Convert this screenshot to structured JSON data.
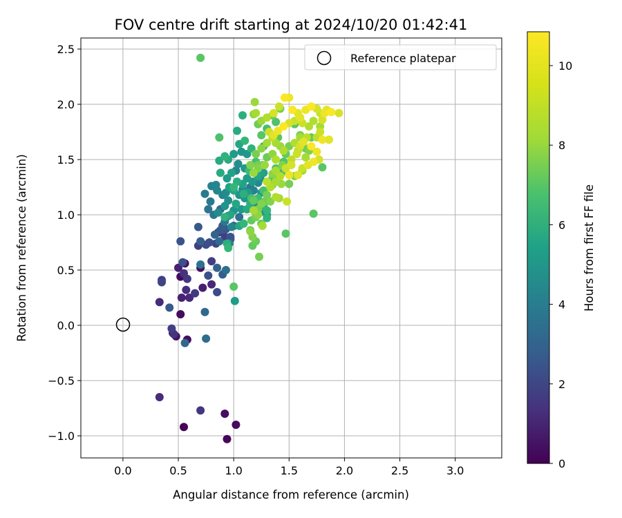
{
  "chart_data": {
    "type": "scatter",
    "title": "FOV centre drift starting at 2024/10/20 01:42:41",
    "xlabel": "Angular distance from reference (arcmin)",
    "ylabel": "Rotation from reference (arcmin)",
    "xlim": [
      -0.38,
      3.42
    ],
    "ylim": [
      -1.2,
      2.6
    ],
    "xticks": [
      0.0,
      0.5,
      1.0,
      1.5,
      2.0,
      2.5,
      3.0
    ],
    "xtick_labels": [
      "0.0",
      "0.5",
      "1.0",
      "1.5",
      "2.0",
      "2.5",
      "3.0"
    ],
    "yticks": [
      -1.0,
      -0.5,
      0.0,
      0.5,
      1.0,
      1.5,
      2.0,
      2.5
    ],
    "ytick_labels": [
      "−1.0",
      "−0.5",
      "0.0",
      "0.5",
      "1.0",
      "1.5",
      "2.0",
      "2.5"
    ],
    "grid": true,
    "colormap": "viridis",
    "legend": {
      "placement": "top-right",
      "entries": [
        {
          "label": "Reference platepar",
          "marker": "open-circle",
          "x": 0.0,
          "y": 0.0
        }
      ]
    },
    "colorbar": {
      "label": "Hours from first FF file",
      "range": [
        0,
        10.85
      ],
      "ticks": [
        0,
        2,
        4,
        6,
        8,
        10
      ],
      "tick_labels": [
        "0",
        "2",
        "4",
        "6",
        "8",
        "10"
      ]
    },
    "points": [
      [
        0.55,
        -0.92,
        0.1
      ],
      [
        0.94,
        -1.03,
        0.2
      ],
      [
        1.02,
        -0.9,
        0.3
      ],
      [
        0.92,
        -0.8,
        0.4
      ],
      [
        0.33,
        -0.65,
        1.4
      ],
      [
        0.7,
        -0.77,
        1.7
      ],
      [
        0.52,
        0.1,
        0.3
      ],
      [
        0.58,
        -0.13,
        0.4
      ],
      [
        0.48,
        -0.1,
        0.6
      ],
      [
        0.45,
        -0.07,
        1.0
      ],
      [
        0.53,
        0.25,
        1.0
      ],
      [
        0.6,
        0.25,
        1.2
      ],
      [
        0.33,
        0.21,
        1.3
      ],
      [
        0.46,
        -0.08,
        1.6
      ],
      [
        0.44,
        -0.03,
        2.0
      ],
      [
        0.57,
        0.32,
        1.4
      ],
      [
        0.65,
        0.29,
        1.8
      ],
      [
        0.35,
        0.41,
        2.0
      ],
      [
        0.42,
        0.16,
        3.0
      ],
      [
        0.56,
        -0.16,
        3.6
      ],
      [
        0.75,
        -0.12,
        3.8
      ],
      [
        0.74,
        0.12,
        3.6
      ],
      [
        0.52,
        0.44,
        0.3
      ],
      [
        0.56,
        0.56,
        0.5
      ],
      [
        0.5,
        0.52,
        1.0
      ],
      [
        0.7,
        0.52,
        0.4
      ],
      [
        0.72,
        0.34,
        0.9
      ],
      [
        0.8,
        0.37,
        1.2
      ],
      [
        0.55,
        0.47,
        1.6
      ],
      [
        0.58,
        0.42,
        1.8
      ],
      [
        0.35,
        0.39,
        2.2
      ],
      [
        0.85,
        0.3,
        2.4
      ],
      [
        0.77,
        0.45,
        2.6
      ],
      [
        0.9,
        0.46,
        3.2
      ],
      [
        0.85,
        0.52,
        3.4
      ],
      [
        0.93,
        0.5,
        4.0
      ],
      [
        0.7,
        0.55,
        4.0
      ],
      [
        0.8,
        0.58,
        2.0
      ],
      [
        0.54,
        0.57,
        2.6
      ],
      [
        0.52,
        0.76,
        2.8
      ],
      [
        0.68,
        0.72,
        2.0
      ],
      [
        0.75,
        0.73,
        2.4
      ],
      [
        0.78,
        0.75,
        2.6
      ],
      [
        0.84,
        0.74,
        2.2
      ],
      [
        0.7,
        0.76,
        3.2
      ],
      [
        0.86,
        0.84,
        1.2
      ],
      [
        0.92,
        0.8,
        2.0
      ],
      [
        0.97,
        0.78,
        2.6
      ],
      [
        0.68,
        0.89,
        3.0
      ],
      [
        0.88,
        0.86,
        3.0
      ],
      [
        0.83,
        0.82,
        3.5
      ],
      [
        0.87,
        0.76,
        3.8
      ],
      [
        0.93,
        0.87,
        3.0
      ],
      [
        0.97,
        0.8,
        2.8
      ],
      [
        0.9,
        0.9,
        3.2
      ],
      [
        0.95,
        0.99,
        4.0
      ],
      [
        0.82,
        1.0,
        4.2
      ],
      [
        0.92,
        0.94,
        4.4
      ],
      [
        0.96,
        0.74,
        4.6
      ],
      [
        0.98,
        0.89,
        5.0
      ],
      [
        1.0,
        0.9,
        3.4
      ],
      [
        1.05,
        0.98,
        4.0
      ],
      [
        0.88,
        1.05,
        3.8
      ],
      [
        0.86,
        1.02,
        5.2
      ],
      [
        0.77,
        1.05,
        4.2
      ],
      [
        0.79,
        1.12,
        4.4
      ],
      [
        0.74,
        1.19,
        4.5
      ],
      [
        0.8,
        1.26,
        4.8
      ],
      [
        0.85,
        1.22,
        5.0
      ],
      [
        0.84,
        1.27,
        5.0
      ],
      [
        0.9,
        1.18,
        5.0
      ],
      [
        0.93,
        1.2,
        5.2
      ],
      [
        0.95,
        1.13,
        5.4
      ],
      [
        0.92,
        1.08,
        5.6
      ],
      [
        1.0,
        1.04,
        5.6
      ],
      [
        1.07,
        1.05,
        5.8
      ],
      [
        1.05,
        1.18,
        5.5
      ],
      [
        1.1,
        1.15,
        5.6
      ],
      [
        1.13,
        1.2,
        5.9
      ],
      [
        1.08,
        1.23,
        5.2
      ],
      [
        1.15,
        1.25,
        4.6
      ],
      [
        1.18,
        1.22,
        4.8
      ],
      [
        1.2,
        1.13,
        4.8
      ],
      [
        1.18,
        1.08,
        4.9
      ],
      [
        1.26,
        1.03,
        5.4
      ],
      [
        1.3,
        1.0,
        6.0
      ],
      [
        1.25,
        1.2,
        5.6
      ],
      [
        1.22,
        1.29,
        5.0
      ],
      [
        1.24,
        1.33,
        5.4
      ],
      [
        1.17,
        1.3,
        5.8
      ],
      [
        1.12,
        1.33,
        6.0
      ],
      [
        1.08,
        1.28,
        6.2
      ],
      [
        1.0,
        1.22,
        6.4
      ],
      [
        0.96,
        1.25,
        6.2
      ],
      [
        0.94,
        1.33,
        6.0
      ],
      [
        0.98,
        1.38,
        6.2
      ],
      [
        1.02,
        1.4,
        5.0
      ],
      [
        1.04,
        1.46,
        5.4
      ],
      [
        1.1,
        1.42,
        5.8
      ],
      [
        1.0,
        1.55,
        6.0
      ],
      [
        1.07,
        1.57,
        5.6
      ],
      [
        1.12,
        1.55,
        5.8
      ],
      [
        1.05,
        1.64,
        6.4
      ],
      [
        0.95,
        1.5,
        6.6
      ],
      [
        0.87,
        1.49,
        6.6
      ],
      [
        0.92,
        1.53,
        7.0
      ],
      [
        0.88,
        1.38,
        6.6
      ],
      [
        1.03,
        1.3,
        6.8
      ],
      [
        1.09,
        1.19,
        6.8
      ],
      [
        1.15,
        1.1,
        6.8
      ],
      [
        1.12,
        1.05,
        6.6
      ],
      [
        1.02,
        1.1,
        6.4
      ],
      [
        0.97,
        1.0,
        6.4
      ],
      [
        0.94,
        0.74,
        6.8
      ],
      [
        0.95,
        0.7,
        7.2
      ],
      [
        0.92,
        0.98,
        7.0
      ],
      [
        1.0,
        1.25,
        7.2
      ],
      [
        1.14,
        1.4,
        7.4
      ],
      [
        1.22,
        1.35,
        6.4
      ],
      [
        1.27,
        1.38,
        6.2
      ],
      [
        1.2,
        1.48,
        7.6
      ],
      [
        1.03,
        1.76,
        6.6
      ],
      [
        1.08,
        1.9,
        6.8
      ],
      [
        1.1,
        1.67,
        7.2
      ],
      [
        1.16,
        1.6,
        7.0
      ],
      [
        0.87,
        1.7,
        7.8
      ],
      [
        0.7,
        2.42,
        8.0
      ],
      [
        1.0,
        0.35,
        8.0
      ],
      [
        1.01,
        0.22,
        6.0
      ],
      [
        1.05,
        0.9,
        6.4
      ],
      [
        1.09,
        0.92,
        7.2
      ],
      [
        1.15,
        0.86,
        8.2
      ],
      [
        1.16,
        0.95,
        8.2
      ],
      [
        1.17,
        0.72,
        8.2
      ],
      [
        1.2,
        0.76,
        8.4
      ],
      [
        1.23,
        0.62,
        8.6
      ],
      [
        1.26,
        0.9,
        9.4
      ],
      [
        1.3,
        0.97,
        7.0
      ],
      [
        1.3,
        1.04,
        7.2
      ],
      [
        1.27,
        1.08,
        7.0
      ],
      [
        1.22,
        1.15,
        7.4
      ],
      [
        1.16,
        1.15,
        7.6
      ],
      [
        1.27,
        1.22,
        7.6
      ],
      [
        1.33,
        1.27,
        7.8
      ],
      [
        1.35,
        1.33,
        8.0
      ],
      [
        1.38,
        1.42,
        7.8
      ],
      [
        1.43,
        1.38,
        7.6
      ],
      [
        1.45,
        1.48,
        7.8
      ],
      [
        1.47,
        1.55,
        8.2
      ],
      [
        1.5,
        1.62,
        8.6
      ],
      [
        1.4,
        1.7,
        8.0
      ],
      [
        1.38,
        1.84,
        7.8
      ],
      [
        1.3,
        1.78,
        7.6
      ],
      [
        1.27,
        1.62,
        7.4
      ],
      [
        1.25,
        1.72,
        8.0
      ],
      [
        1.22,
        1.82,
        8.4
      ],
      [
        1.35,
        1.9,
        8.4
      ],
      [
        1.42,
        1.96,
        8.6
      ],
      [
        1.55,
        1.82,
        8.0
      ],
      [
        1.6,
        1.72,
        8.6
      ],
      [
        1.65,
        1.6,
        8.4
      ],
      [
        1.7,
        1.7,
        8.2
      ],
      [
        1.8,
        1.43,
        8.0
      ],
      [
        1.72,
        1.01,
        8.0
      ],
      [
        1.47,
        0.83,
        8.0
      ],
      [
        1.41,
        1.15,
        9.4
      ],
      [
        1.38,
        1.16,
        9.6
      ],
      [
        1.48,
        1.12,
        10.0
      ],
      [
        1.33,
        1.25,
        9.6
      ],
      [
        1.3,
        1.3,
        9.8
      ],
      [
        1.35,
        1.37,
        9.0
      ],
      [
        1.38,
        1.4,
        9.4
      ],
      [
        1.42,
        1.35,
        9.6
      ],
      [
        1.47,
        1.42,
        10.0
      ],
      [
        1.52,
        1.45,
        10.2
      ],
      [
        1.5,
        1.36,
        10.6
      ],
      [
        1.58,
        1.36,
        10.4
      ],
      [
        1.62,
        1.42,
        10.0
      ],
      [
        1.67,
        1.45,
        10.4
      ],
      [
        1.72,
        1.48,
        10.6
      ],
      [
        1.77,
        1.5,
        10.2
      ],
      [
        1.75,
        1.57,
        10.6
      ],
      [
        1.7,
        1.62,
        10.8
      ],
      [
        1.63,
        1.66,
        10.4
      ],
      [
        1.6,
        1.62,
        10.2
      ],
      [
        1.57,
        1.55,
        10.0
      ],
      [
        1.52,
        1.5,
        9.8
      ],
      [
        1.45,
        1.58,
        9.6
      ],
      [
        1.42,
        1.62,
        9.2
      ],
      [
        1.38,
        1.65,
        9.4
      ],
      [
        1.35,
        1.7,
        9.8
      ],
      [
        1.32,
        1.75,
        10.0
      ],
      [
        1.36,
        1.72,
        10.4
      ],
      [
        1.4,
        1.76,
        10.6
      ],
      [
        1.45,
        1.8,
        10.8
      ],
      [
        1.5,
        1.83,
        10.2
      ],
      [
        1.55,
        1.85,
        10.0
      ],
      [
        1.6,
        1.88,
        10.4
      ],
      [
        1.65,
        1.95,
        10.6
      ],
      [
        1.7,
        1.98,
        10.8
      ],
      [
        1.75,
        1.96,
        10.2
      ],
      [
        1.78,
        1.92,
        10.0
      ],
      [
        1.82,
        1.92,
        10.6
      ],
      [
        1.88,
        1.93,
        10.8
      ],
      [
        1.95,
        1.92,
        10.2
      ],
      [
        1.86,
        1.68,
        10.4
      ],
      [
        1.8,
        1.68,
        10.6
      ],
      [
        1.78,
        1.75,
        10.0
      ],
      [
        1.75,
        1.7,
        9.8
      ],
      [
        1.68,
        1.8,
        9.6
      ],
      [
        1.62,
        1.83,
        10.0
      ],
      [
        1.58,
        1.92,
        10.4
      ],
      [
        1.53,
        1.95,
        10.8
      ],
      [
        1.5,
        2.06,
        10.6
      ],
      [
        1.46,
        2.06,
        10.8
      ],
      [
        1.41,
        1.98,
        10.0
      ],
      [
        1.36,
        1.92,
        10.2
      ],
      [
        1.3,
        1.88,
        9.6
      ],
      [
        1.25,
        1.85,
        9.2
      ],
      [
        1.2,
        1.92,
        9.4
      ],
      [
        1.18,
        1.91,
        9.0
      ],
      [
        1.19,
        2.02,
        9.2
      ],
      [
        1.3,
        1.65,
        9.4
      ],
      [
        1.25,
        1.6,
        9.0
      ],
      [
        1.2,
        1.55,
        8.6
      ],
      [
        1.15,
        1.45,
        8.8
      ],
      [
        1.18,
        1.38,
        9.2
      ],
      [
        1.22,
        1.42,
        8.8
      ],
      [
        1.28,
        1.45,
        9.2
      ],
      [
        1.3,
        1.52,
        8.4
      ],
      [
        1.35,
        1.55,
        9.0
      ],
      [
        1.38,
        1.5,
        9.6
      ],
      [
        1.44,
        1.45,
        8.8
      ],
      [
        1.5,
        1.28,
        8.6
      ],
      [
        1.55,
        1.35,
        9.0
      ],
      [
        1.62,
        1.4,
        9.2
      ],
      [
        1.68,
        1.58,
        8.8
      ],
      [
        1.65,
        1.52,
        9.4
      ],
      [
        1.22,
        1.0,
        9.0
      ],
      [
        1.2,
        0.98,
        8.6
      ],
      [
        1.18,
        1.04,
        9.4
      ],
      [
        1.25,
        1.1,
        8.8
      ],
      [
        1.28,
        1.12,
        8.4
      ],
      [
        1.22,
        1.05,
        8.6
      ],
      [
        1.18,
        1.13,
        8.2
      ],
      [
        1.3,
        1.18,
        8.6
      ],
      [
        1.33,
        1.12,
        8.8
      ],
      [
        1.17,
        0.8,
        8.8
      ],
      [
        1.15,
        0.85,
        9.0
      ],
      [
        1.25,
        0.92,
        8.4
      ],
      [
        1.35,
        1.27,
        9.0
      ],
      [
        1.38,
        1.3,
        9.4
      ],
      [
        1.43,
        1.28,
        9.2
      ],
      [
        1.58,
        1.58,
        9.8
      ],
      [
        1.55,
        1.65,
        9.6
      ],
      [
        1.6,
        1.7,
        9.4
      ],
      [
        1.66,
        1.7,
        9.8
      ],
      [
        1.72,
        1.85,
        9.6
      ],
      [
        1.78,
        1.8,
        9.4
      ],
      [
        1.8,
        1.86,
        10.2
      ],
      [
        1.84,
        1.95,
        10.4
      ],
      [
        1.26,
        1.45,
        8.4
      ],
      [
        1.22,
        1.45,
        8.6
      ]
    ]
  }
}
